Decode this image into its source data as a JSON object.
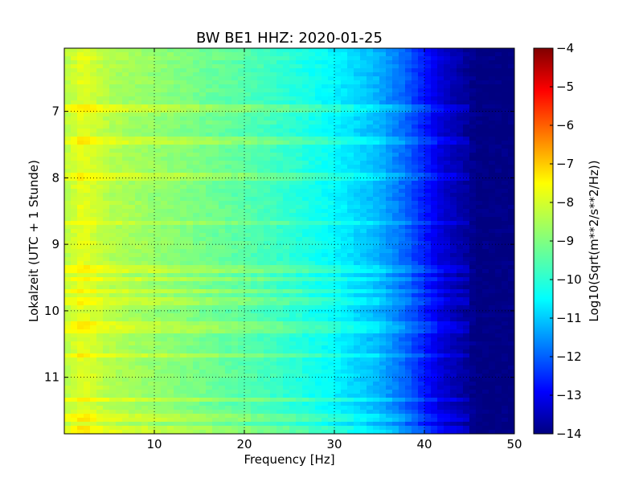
{
  "chart_data": {
    "type": "heatmap",
    "title": "BW BE1 HHZ: 2020-01-25",
    "xlabel": "Frequency [Hz]",
    "ylabel": "Lokalzeit (UTC + 1 Stunde)",
    "xlim": [
      0,
      50
    ],
    "ylim": [
      6.05,
      11.85
    ],
    "x_ticks": [
      10,
      20,
      30,
      40,
      50
    ],
    "y_ticks": [
      7,
      8,
      9,
      10,
      11
    ],
    "grid": true,
    "colormap": "jet",
    "colorbar": {
      "label": "Log10(Sqrt(m**2/s**2/Hz))",
      "range": [
        -14,
        -4
      ],
      "ticks": [
        -4,
        -5,
        -6,
        -7,
        -8,
        -9,
        -10,
        -11,
        -12,
        -13,
        -14
      ]
    },
    "spectrum_profile": {
      "frequency_hz": [
        0,
        2,
        5,
        10,
        15,
        20,
        25,
        30,
        35,
        38,
        40,
        42,
        44,
        46,
        50
      ],
      "log10_amplitude": [
        -8.5,
        -8.0,
        -8.5,
        -8.8,
        -9.1,
        -9.4,
        -9.8,
        -10.3,
        -11.0,
        -11.8,
        -12.5,
        -13.2,
        -13.6,
        -14.0,
        -14.0
      ]
    },
    "high_noise_times": [
      6.95,
      7.45,
      7.98,
      8.68,
      9.38,
      9.52,
      9.72,
      9.85,
      10.18,
      10.28,
      10.68,
      11.32,
      11.62,
      11.78
    ]
  }
}
